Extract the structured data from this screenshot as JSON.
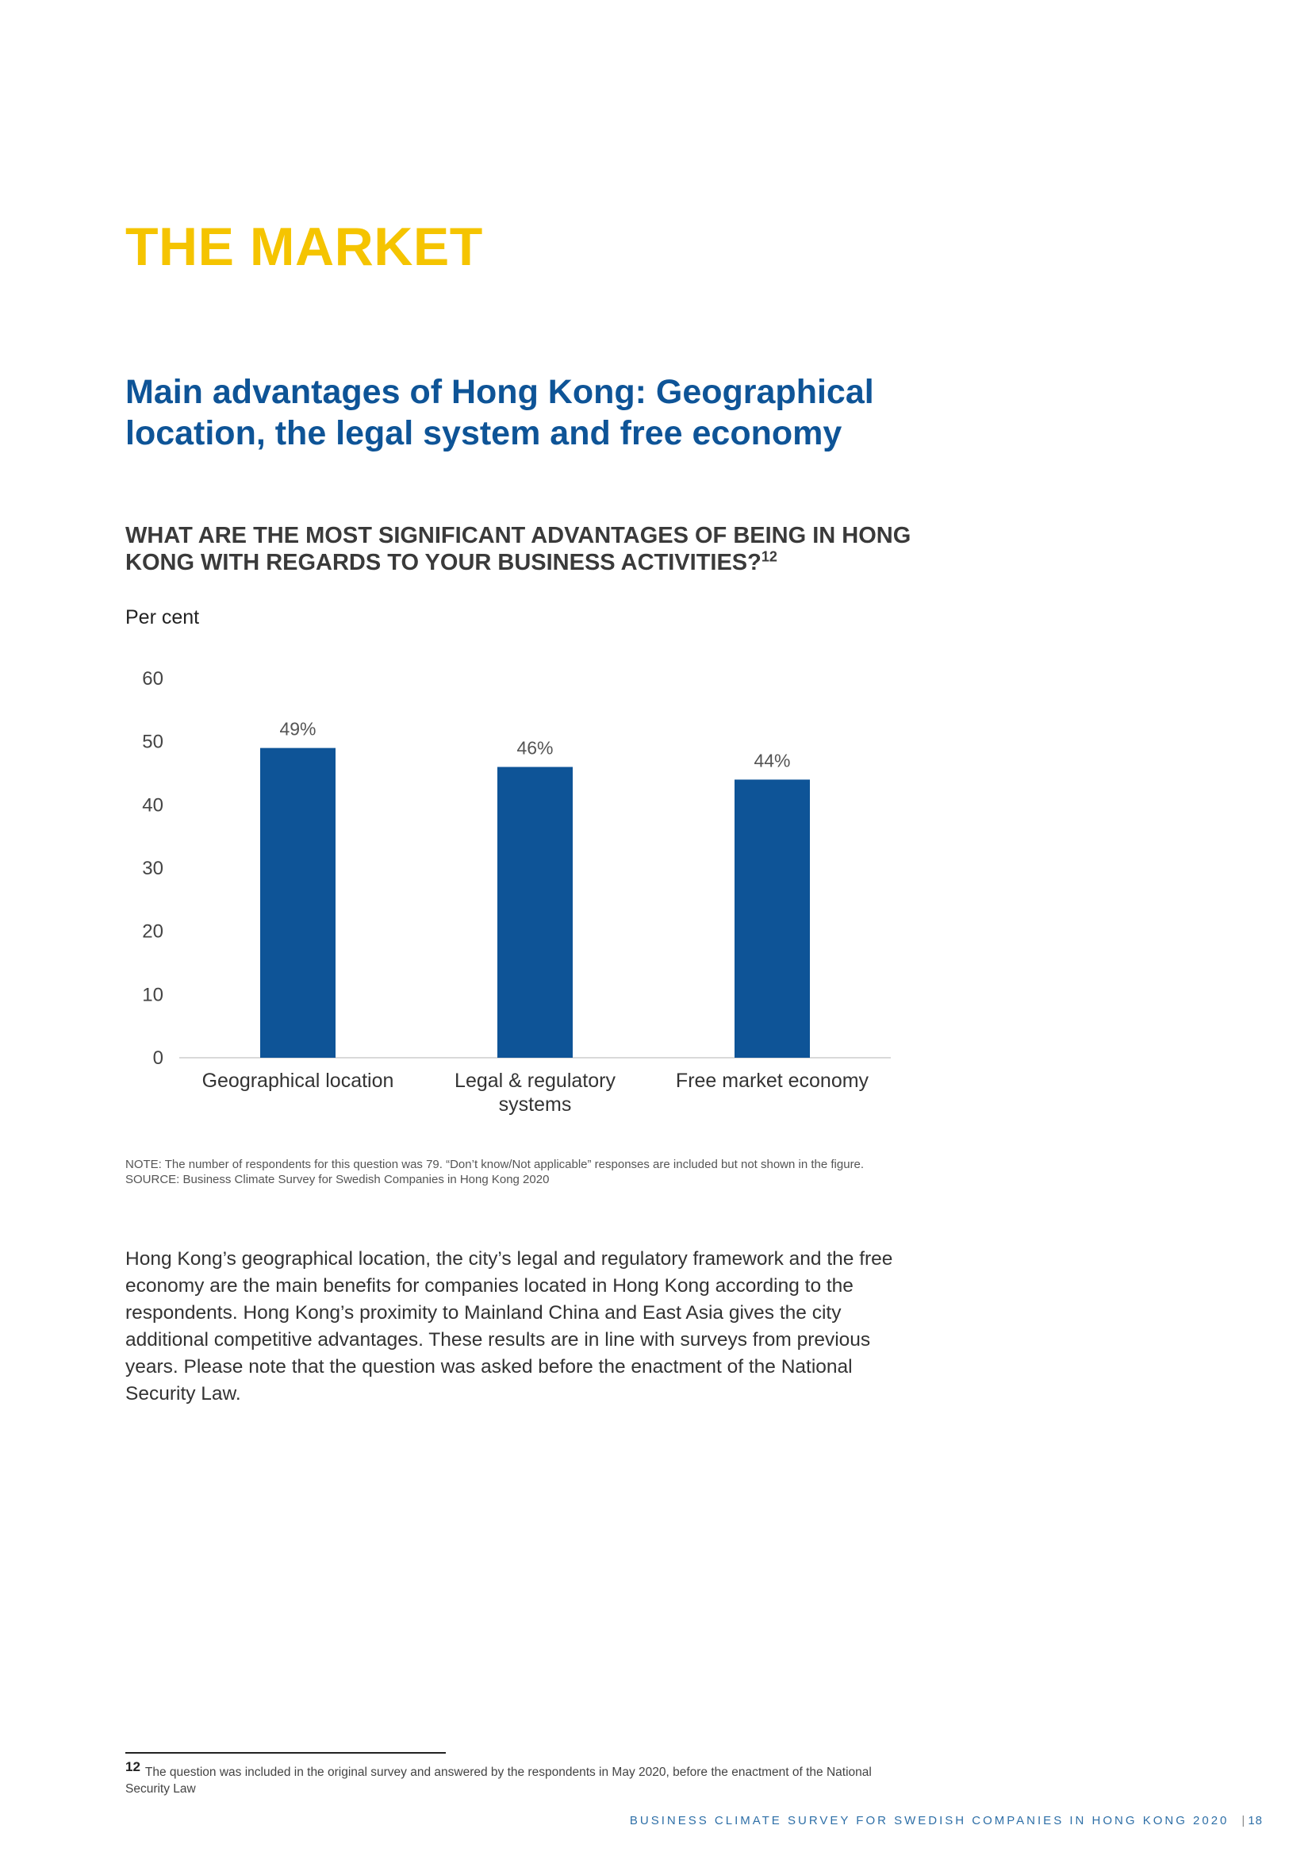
{
  "page": {
    "section_title": "THE MARKET",
    "headline": "Main advantages of Hong Kong: Geographical location, the legal system and free economy",
    "question": "WHAT ARE THE MOST SIGNIFICANT ADVANTAGES OF BEING IN HONG KONG WITH REGARDS TO YOUR BUSINESS ACTIVITIES?",
    "question_footnote_ref": "12",
    "unit_label": "Per cent",
    "note": "NOTE: The number of respondents for this question was 79. “Don’t know/Not applicable” responses are included but not shown in the figure.",
    "source": "SOURCE: Business Climate Survey for Swedish Companies in Hong Kong 2020",
    "body": "Hong Kong’s geographical location, the city’s legal and regulatory framework and the free economy are the main benefits for companies located in Hong Kong according to the respondents. Hong Kong’s proximity to Mainland China and East Asia gives the city additional competitive advantages. These results are in line with surveys from previous years. Please note that the question was asked before the enactment of the National Security Law.",
    "footnote_number": "12",
    "footnote_text": "The question was included in the original survey and answered by the respondents in May 2020, before the enactment of the National Security Law",
    "footer_text": "BUSINESS CLIMATE SURVEY FOR SWEDISH COMPANIES IN HONG KONG 2020",
    "footer_separator": "|",
    "page_number": "18"
  },
  "chart_data": {
    "type": "bar",
    "categories": [
      [
        "Geographical location"
      ],
      [
        "Legal & regulatory",
        "systems"
      ],
      [
        "Free market economy"
      ]
    ],
    "values": [
      49,
      46,
      44
    ],
    "data_labels": [
      "49%",
      "46%",
      "44%"
    ],
    "ylim": [
      0,
      60
    ],
    "yticks": [
      0,
      10,
      20,
      30,
      40,
      50,
      60
    ],
    "grid": false,
    "bar_color": "#0E5497"
  },
  "colors": {
    "title_yellow": "#F5C400",
    "headline_blue": "#0E5497"
  }
}
